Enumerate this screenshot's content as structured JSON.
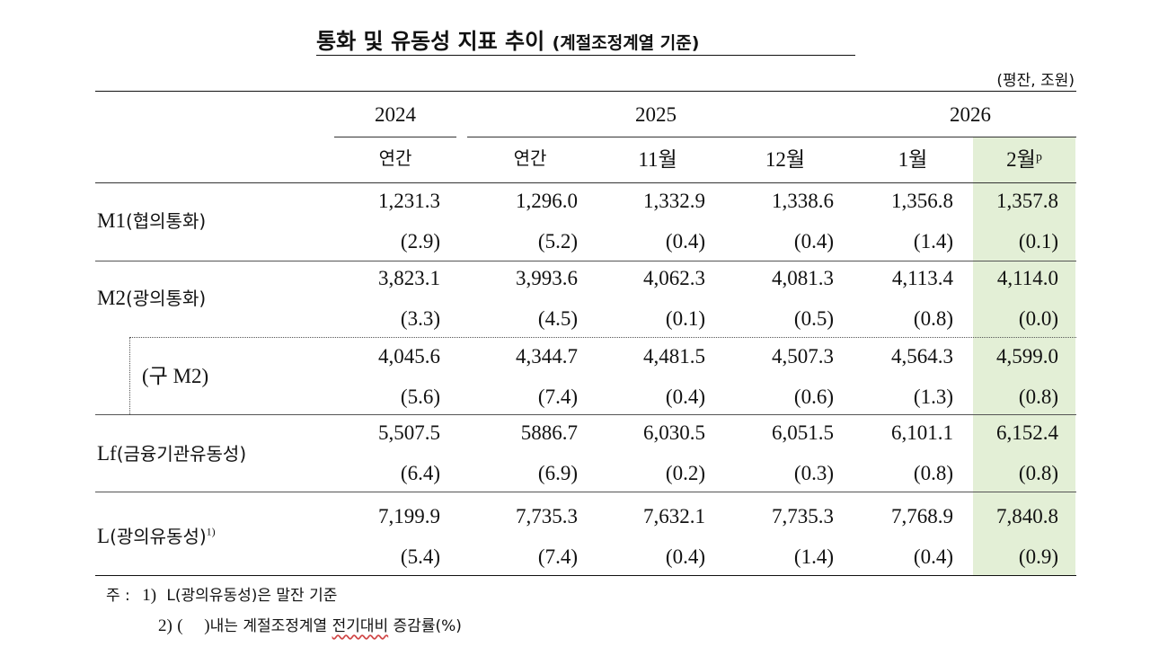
{
  "title": "통화 및 유동성 지표 추이",
  "title_sub": "(계절조정계열 기준)",
  "unit": "(평잔, 조원)",
  "years": [
    "2024",
    "2025",
    "2026"
  ],
  "periods": [
    "연간",
    "연간",
    "11월",
    "12월",
    "1월",
    "2월ᵖ"
  ],
  "rows": [
    {
      "label": "M1",
      "label_ko": "(협의통화)",
      "values": [
        "1,231.3",
        "1,296.0",
        "1,332.9",
        "1,338.6",
        "1,356.8",
        "1,357.8"
      ],
      "changes": [
        "(2.9)",
        "(5.2)",
        "(0.4)",
        "(0.4)",
        "(1.4)",
        "(0.1)"
      ]
    },
    {
      "label": "M2",
      "label_ko": "(광의통화)",
      "values": [
        "3,823.1",
        "3,993.6",
        "4,062.3",
        "4,081.3",
        "4,113.4",
        "4,114.0"
      ],
      "changes": [
        "(3.3)",
        "(4.5)",
        "(0.1)",
        "(0.5)",
        "(0.8)",
        "(0.0)"
      ]
    },
    {
      "label": "(구 M2)",
      "label_ko": "",
      "values": [
        "4,045.6",
        "4,344.7",
        "4,481.5",
        "4,507.3",
        "4,564.3",
        "4,599.0"
      ],
      "changes": [
        "(5.6)",
        "(7.4)",
        "(0.4)",
        "(0.6)",
        "(1.3)",
        "(0.8)"
      ]
    },
    {
      "label": "Lf",
      "label_ko": "(금융기관유동성)",
      "values": [
        "5,507.5",
        "5886.7",
        "6,030.5",
        "6,051.5",
        "6,101.1",
        "6,152.4"
      ],
      "changes": [
        "(6.4)",
        "(6.9)",
        "(0.2)",
        "(0.3)",
        "(0.8)",
        "(0.8)"
      ]
    },
    {
      "label": "L",
      "label_ko": "(광의유동성)",
      "label_sup": "1)",
      "values": [
        "7,199.9",
        "7,735.3",
        "7,632.1",
        "7,735.3",
        "7,768.9",
        "7,840.8"
      ],
      "changes": [
        "(5.4)",
        "(7.4)",
        "(0.4)",
        "(1.4)",
        "(0.4)",
        "(0.9)"
      ]
    }
  ],
  "notes": {
    "prefix": "주 :",
    "note1_num": "1)",
    "note1_text": "L(광의유동성)은 말잔 기준",
    "note2_num": "2)",
    "note2_paren": "(     )",
    "note2_text_a": "내는 계절조정계열 ",
    "note2_text_b": "전기대비",
    "note2_text_c": " 증감률(%)"
  },
  "colors": {
    "highlight": "#e3efd6",
    "text": "#111111"
  }
}
